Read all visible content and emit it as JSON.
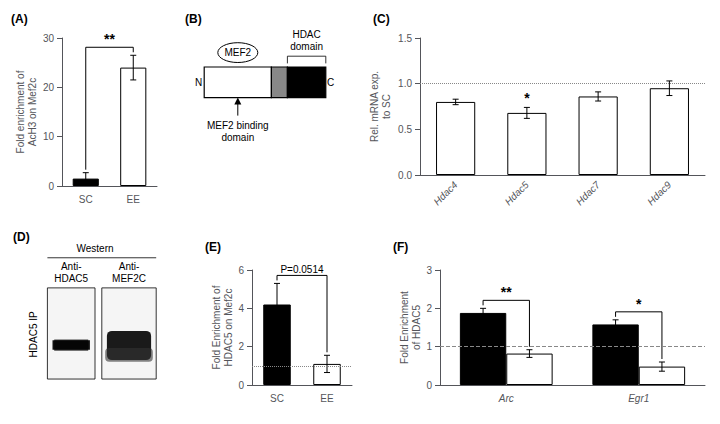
{
  "chart_data": [
    {
      "type": "bar",
      "title": "(A)",
      "categories": [
        "SC",
        "EE"
      ],
      "values": [
        1.5,
        24.0
      ],
      "errors": [
        1.2,
        2.5
      ],
      "colors": [
        "#000000",
        "#ffffff"
      ],
      "ylabel": "Fold enrichment of\nAcH3 on Mef2c",
      "ylim": [
        0,
        30
      ],
      "yticks": [
        0,
        10,
        20,
        30
      ],
      "annotations": [
        {
          "text": "**"
        }
      ]
    },
    {
      "type": "protein_schematic",
      "title": "(B)",
      "annotations": [
        {
          "text": "MEF2",
          "anchor": "partner"
        },
        {
          "text": "N",
          "anchor": "n_terminus"
        },
        {
          "text": "C",
          "anchor": "c_terminus"
        },
        {
          "text": "HDAC\ndomain",
          "anchor": "domain"
        },
        {
          "text": "MEF2 binding\ndomain",
          "anchor": "binding_site"
        }
      ]
    },
    {
      "type": "bar",
      "title": "(C)",
      "categories": [
        "Hdac4",
        "Hdac5",
        "Hdac7",
        "Hdac9"
      ],
      "values": [
        0.8,
        0.68,
        0.86,
        0.95
      ],
      "errors": [
        0.03,
        0.06,
        0.05,
        0.08
      ],
      "colors": [
        "#ffffff",
        "#ffffff",
        "#ffffff",
        "#ffffff"
      ],
      "ylabel": "Rel. mRNA exp.\nto SC",
      "ylim": [
        0.0,
        1.5
      ],
      "yticks": [
        {
          "value": 0,
          "label": "0.0"
        },
        0.5,
        {
          "value": 1,
          "label": "1.0"
        },
        1.5
      ],
      "reference_line": {
        "y": 1.0,
        "line_style": "dotted"
      },
      "annotations": [
        {
          "category": "Hdac5",
          "text": "*"
        }
      ]
    },
    {
      "type": "western_blot",
      "title": "(D)",
      "annotations": [
        {
          "text": "Western",
          "anchor": "header"
        },
        {
          "text": "Anti-\nHDAC5",
          "anchor": "lane1"
        },
        {
          "text": "Anti-\nMEF2C",
          "anchor": "lane2"
        },
        {
          "text": "HDAC5 IP",
          "anchor": "side"
        }
      ]
    },
    {
      "type": "bar",
      "title": "(E)",
      "categories": [
        "SC",
        "EE"
      ],
      "values": [
        4.2,
        1.1
      ],
      "errors": [
        1.1,
        0.45
      ],
      "colors": [
        "#000000",
        "#ffffff"
      ],
      "ylabel": "Fold Enrichment of\nHDAC5 on Mef2c",
      "ylim": [
        0,
        6
      ],
      "yticks": [
        0,
        2,
        4,
        6
      ],
      "reference_line": {
        "y": 1.0,
        "line_style": "dotted"
      },
      "annotations": [
        {
          "text": "P=0.0514"
        }
      ]
    },
    {
      "type": "bar",
      "title": "(F)",
      "categories": [
        "Arc",
        "Egr1"
      ],
      "series": [
        {
          "color": "#000000",
          "values": [
            1.88,
            1.58
          ],
          "errors": [
            0.12,
            0.12
          ]
        },
        {
          "color": "#ffffff",
          "values": [
            0.82,
            0.48
          ],
          "errors": [
            0.1,
            0.12
          ]
        }
      ],
      "ylabel": "Fold Enrichment\nof HDAC5",
      "ylim": [
        0,
        3
      ],
      "yticks": [
        0,
        1,
        2,
        3
      ],
      "reference_line": {
        "y": 1.0,
        "line_style": "dashed"
      },
      "annotations": [
        {
          "category": "Arc",
          "text": "**"
        },
        {
          "category": "Egr1",
          "text": "*"
        }
      ]
    }
  ]
}
